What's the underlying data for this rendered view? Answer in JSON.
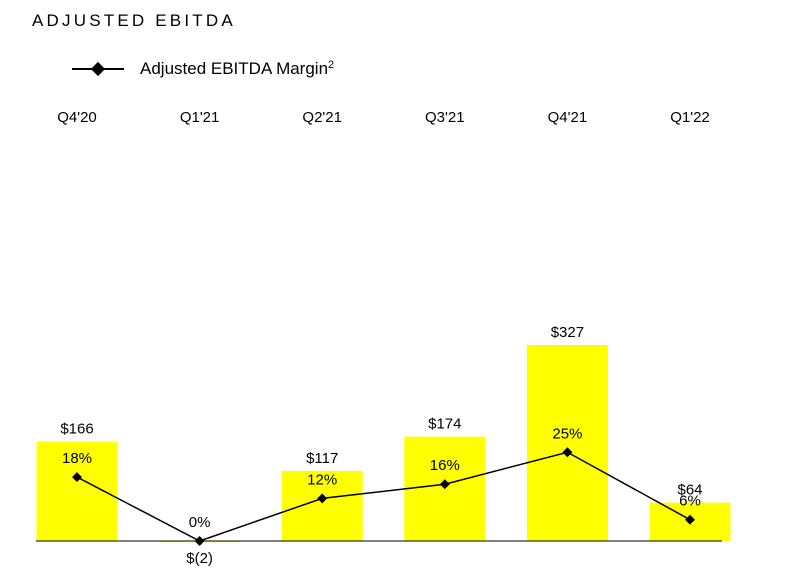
{
  "chart_data": {
    "type": "bar",
    "title": "ADJUSTED EBITDA",
    "categories": [
      "Q4'20",
      "Q1'21",
      "Q2'21",
      "Q3'21",
      "Q4'21",
      "Q1'22"
    ],
    "bar_values": [
      166,
      -2,
      117,
      174,
      327,
      64
    ],
    "bar_labels": [
      "$166",
      "$(2)",
      "$117",
      "$174",
      "$327",
      "$64"
    ],
    "line_series": {
      "name": "Adjusted EBITDA Margin",
      "name_superscript": "2",
      "values": [
        18,
        0,
        12,
        16,
        25,
        6
      ],
      "labels": [
        "18%",
        "0%",
        "12%",
        "16%",
        "25%",
        "6%"
      ]
    },
    "bar_color": "#FFFF00",
    "line_color": "#000000",
    "legend_position": "top-left",
    "grid": false
  }
}
